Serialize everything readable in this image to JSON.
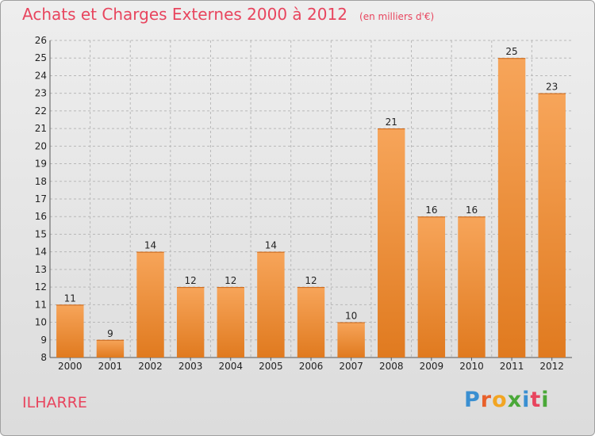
{
  "header": {
    "title": "Achats et Charges Externes 2000 à 2012",
    "unit": "(en milliers d'€)"
  },
  "footer": {
    "commune": "ILHARRE",
    "brand_letters": [
      "P",
      "r",
      "o",
      "x",
      "i",
      "t",
      "i"
    ],
    "brand_colors": [
      "#3a8fd1",
      "#e8602b",
      "#f2a522",
      "#4aa838",
      "#3a8fd1",
      "#e8455e",
      "#4aa838"
    ]
  },
  "colors": {
    "bar_light": "#f7a55a",
    "bar_dark": "#e07a1f",
    "title": "#e8455e"
  },
  "chart_data": {
    "type": "bar",
    "categories": [
      "2000",
      "2001",
      "2002",
      "2003",
      "2004",
      "2005",
      "2006",
      "2007",
      "2008",
      "2009",
      "2010",
      "2011",
      "2012"
    ],
    "values": [
      11,
      9,
      14,
      12,
      12,
      14,
      12,
      10,
      21,
      16,
      16,
      25,
      23
    ],
    "ylim": [
      8,
      26
    ],
    "yticks": [
      8,
      9,
      10,
      11,
      12,
      13,
      14,
      15,
      16,
      17,
      18,
      19,
      20,
      21,
      22,
      23,
      24,
      25,
      26
    ],
    "grid": true,
    "legend": "none"
  }
}
